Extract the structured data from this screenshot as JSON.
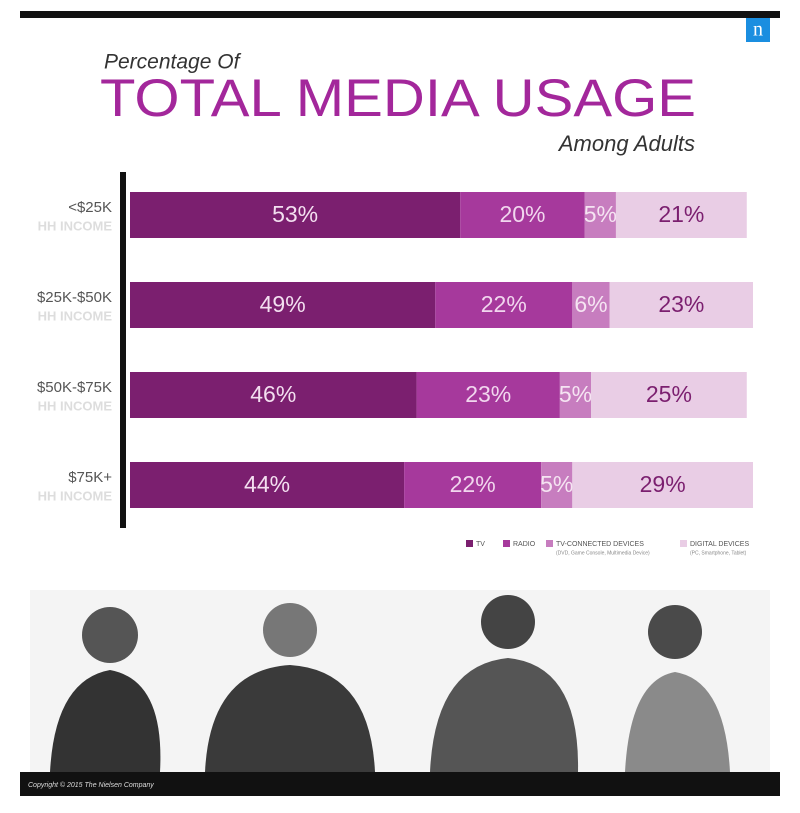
{
  "chart_data": {
    "type": "stacked-bar-horizontal",
    "logo": "n",
    "title_top": "Percentage Of",
    "title": "TOTAL MEDIA USAGE",
    "subtitle": "Among Adults",
    "categories": [
      "<$25K",
      "$25K-$50K",
      "$50K-$75K",
      "$75K+"
    ],
    "category_notes": [
      "HH INCOME",
      "HH INCOME",
      "HH INCOME",
      "HH INCOME"
    ],
    "series": [
      {
        "name": "TV",
        "color": "#7b1f6f",
        "label_color": "#f3dff0",
        "values": [
          53,
          49,
          46,
          44
        ],
        "value_labels": [
          "53%",
          "49%",
          "46%",
          "44%"
        ]
      },
      {
        "name": "RADIO",
        "color": "#a6399c",
        "label_color": "#f1d6ee",
        "values": [
          20,
          22,
          23,
          22
        ],
        "value_labels": [
          "20%",
          "22%",
          "23%",
          "22%"
        ]
      },
      {
        "name": "TV-CONNECTED DEVICES",
        "note": "(DVD, Game Console, Multimedia Device)",
        "color": "#c77dbf",
        "label_color": "#f5e4f2",
        "values": [
          5,
          6,
          5,
          5
        ],
        "value_labels": [
          "5%",
          "6%",
          "5%",
          "5%"
        ]
      },
      {
        "name": "DIGITAL DEVICES",
        "note": "(PC, Smartphone, Tablet)",
        "color": "#e9cde5",
        "label_color": "#7b1f6f",
        "values": [
          21,
          23,
          25,
          29
        ],
        "value_labels": [
          "21%",
          "23%",
          "25%",
          "29%"
        ]
      }
    ],
    "copyright": "Copyright © 2015 The Nielsen Company"
  }
}
